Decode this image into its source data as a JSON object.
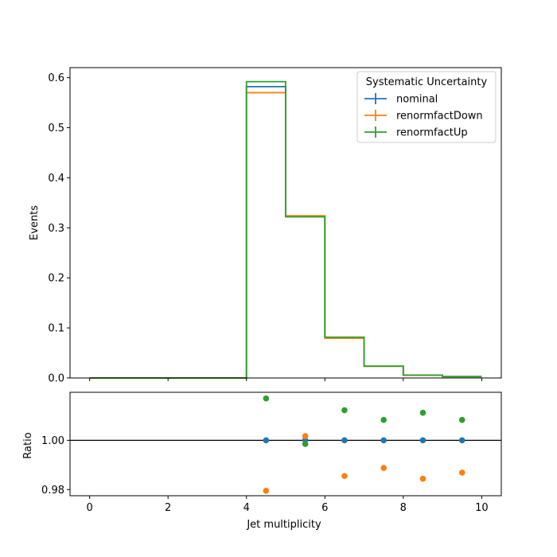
{
  "chart_data": [
    {
      "type": "line",
      "style": "step histogram",
      "xlabel": "",
      "ylabel": "Events",
      "xlim": [
        -0.5,
        10.5
      ],
      "ylim": [
        0.0,
        0.62
      ],
      "x_ticks": [
        0,
        2,
        4,
        6,
        8,
        10
      ],
      "y_ticks": [
        0.0,
        0.1,
        0.2,
        0.3,
        0.4,
        0.5,
        0.6
      ],
      "y_tick_labels": [
        "0.0",
        "0.1",
        "0.2",
        "0.3",
        "0.4",
        "0.5",
        "0.6"
      ],
      "bin_edges": [
        0,
        1,
        2,
        3,
        4,
        5,
        6,
        7,
        8,
        9,
        10
      ],
      "legend": {
        "title": "Systematic Uncertainty",
        "position": "top-right"
      },
      "series": [
        {
          "name": "nominal",
          "color": "#1f77b4",
          "values": [
            0,
            0,
            0,
            0,
            0.582,
            0.323,
            0.0805,
            0.0235,
            0.0055,
            0.0028
          ]
        },
        {
          "name": "renormfactDown",
          "color": "#ff7f0e",
          "values": [
            0,
            0,
            0,
            0,
            0.57,
            0.324,
            0.0793,
            0.0232,
            0.0054,
            0.0028
          ]
        },
        {
          "name": "renormfactUp",
          "color": "#2ca02c",
          "values": [
            0,
            0,
            0,
            0,
            0.592,
            0.322,
            0.0815,
            0.0237,
            0.0056,
            0.0028
          ]
        }
      ]
    },
    {
      "type": "scatter",
      "xlabel": "Jet multiplicity",
      "ylabel": "Ratio",
      "xlim": [
        -0.5,
        10.5
      ],
      "ylim": [
        0.9775,
        1.0195
      ],
      "x_ticks": [
        0,
        2,
        4,
        6,
        8,
        10
      ],
      "x_tick_labels": [
        "0",
        "2",
        "4",
        "6",
        "8",
        "10"
      ],
      "y_ticks": [
        0.98,
        1.0
      ],
      "y_tick_labels": [
        "0.98",
        "1.00"
      ],
      "reference_line": 1.0,
      "x": [
        4.5,
        5.5,
        6.5,
        7.5,
        8.5,
        9.5
      ],
      "series": [
        {
          "name": "nominal",
          "color": "#1f77b4",
          "values": [
            1.0,
            1.0,
            1.0,
            1.0,
            1.0,
            1.0
          ]
        },
        {
          "name": "renormfactDown",
          "color": "#ff7f0e",
          "values": [
            0.9795,
            1.0017,
            0.9855,
            0.9888,
            0.9844,
            0.9869
          ]
        },
        {
          "name": "renormfactUp",
          "color": "#2ca02c",
          "values": [
            1.017,
            0.9985,
            1.0122,
            1.0083,
            1.0112,
            1.0083
          ]
        }
      ]
    }
  ]
}
